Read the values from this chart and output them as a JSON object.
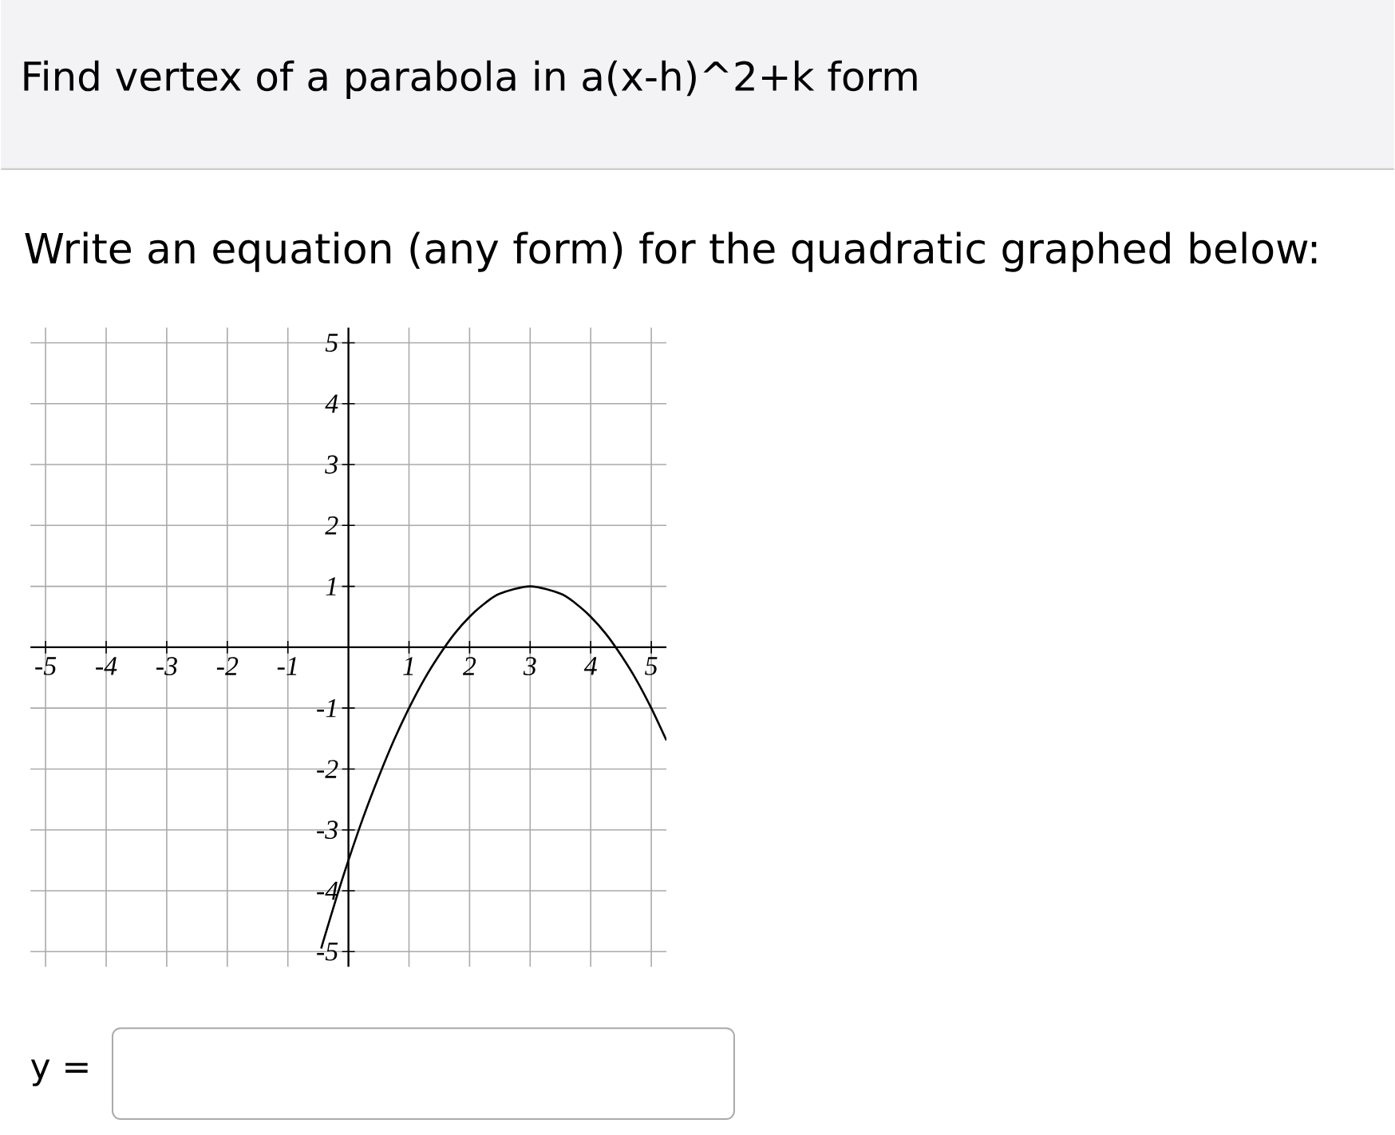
{
  "chart_data": {
    "type": "line",
    "title": "Find vertex of a parabola in a(x-h)^2+k form",
    "subtitle": "Write an equation (any form) for the quadratic graphed below:",
    "annotations": [
      "y ="
    ],
    "x": [
      -0.45,
      -0.4,
      -0.2,
      0,
      0.25,
      0.5,
      0.75,
      1,
      1.25,
      1.5,
      1.75,
      2,
      2.25,
      2.5,
      3,
      3.5,
      3.75,
      4,
      4.25,
      4.5,
      4.75,
      5,
      5.25
    ],
    "values": [
      -4.95,
      -4.78,
      -4.12,
      -3.5,
      -2.78,
      -2.13,
      -1.53,
      -1,
      -0.53,
      -0.13,
      0.22,
      0.5,
      0.72,
      0.88,
      1,
      0.88,
      0.72,
      0.5,
      0.22,
      -0.13,
      -0.53,
      -1,
      -1.53
    ],
    "color": "#000000",
    "marker": "none",
    "grid": true,
    "xlim": [
      -5.25,
      5.25
    ],
    "ylim": [
      -5.25,
      5.25
    ],
    "xticks": [
      -5,
      -4,
      -3,
      -2,
      -1,
      1,
      2,
      3,
      4,
      5
    ],
    "yticks": [
      -5,
      -4,
      -3,
      -2,
      -1,
      1,
      2,
      3,
      4,
      5
    ]
  }
}
